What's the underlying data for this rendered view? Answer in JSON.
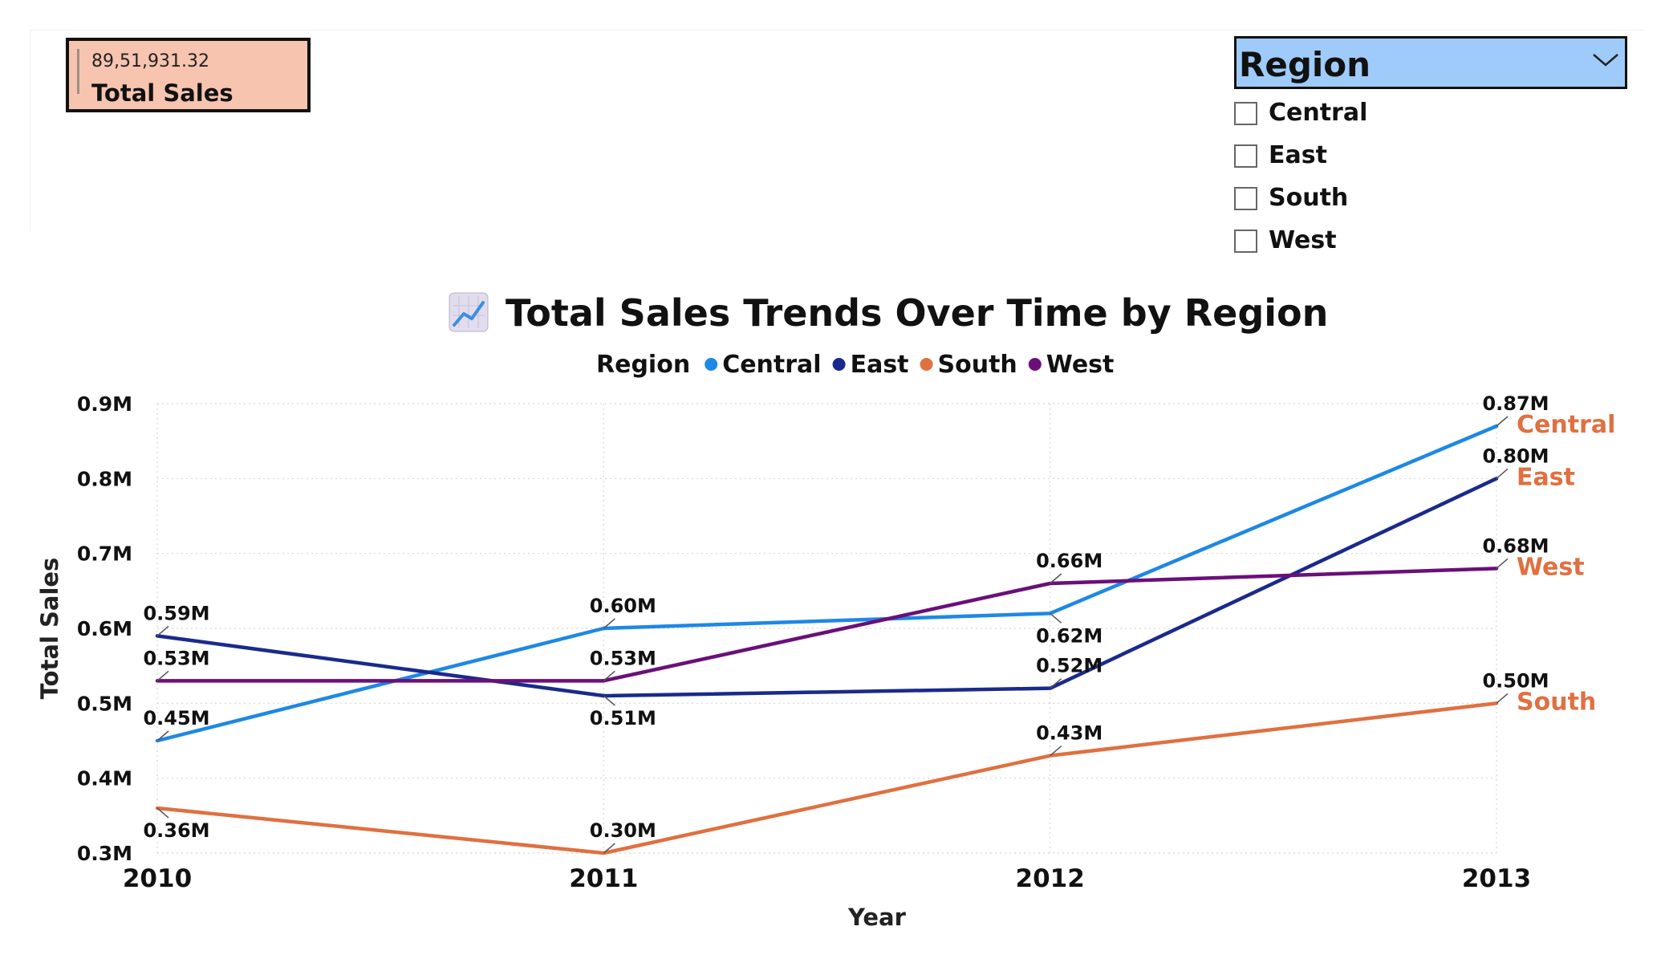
{
  "kpi_card": {
    "value": "89,51,931.32",
    "label": "Total Sales",
    "background": "#f7c4b0"
  },
  "slicer": {
    "title": "Region",
    "header_color": "#9fcbfb",
    "items": [
      {
        "label": "Central",
        "checked": false
      },
      {
        "label": "East",
        "checked": false
      },
      {
        "label": "South",
        "checked": false
      },
      {
        "label": "West",
        "checked": false
      }
    ]
  },
  "chart_data": {
    "type": "line",
    "title": "Total Sales Trends Over Time by Region",
    "title_icon": "chart-increasing-icon",
    "xlabel": "Year",
    "ylabel": "Total Sales",
    "x": [
      "2010",
      "2011",
      "2012",
      "2013"
    ],
    "ylim": [
      0.3,
      0.9
    ],
    "yticks": [
      "0.3M",
      "0.4M",
      "0.5M",
      "0.6M",
      "0.7M",
      "0.8M",
      "0.9M"
    ],
    "grid": true,
    "legend": {
      "title": "Region",
      "placement": "top-center"
    },
    "end_label_color": "#e07040",
    "series": [
      {
        "name": "Central",
        "color": "#1e88e5",
        "values": [
          0.45,
          0.6,
          0.62,
          0.87
        ],
        "labels": [
          "0.45M",
          "0.60M",
          "0.62M",
          "0.87M"
        ]
      },
      {
        "name": "East",
        "color": "#1a2a8c",
        "values": [
          0.59,
          0.51,
          0.52,
          0.8
        ],
        "labels": [
          "0.59M",
          "0.51M",
          "0.52M",
          "0.80M"
        ]
      },
      {
        "name": "South",
        "color": "#e07040",
        "values": [
          0.36,
          0.3,
          0.43,
          0.5
        ],
        "labels": [
          "0.36M",
          "0.30M",
          "0.43M",
          "0.50M"
        ]
      },
      {
        "name": "West",
        "color": "#6a0f7a",
        "values": [
          0.53,
          0.53,
          0.66,
          0.68
        ],
        "labels": [
          "0.53M",
          "0.53M",
          "0.66M",
          "0.68M"
        ]
      }
    ]
  }
}
